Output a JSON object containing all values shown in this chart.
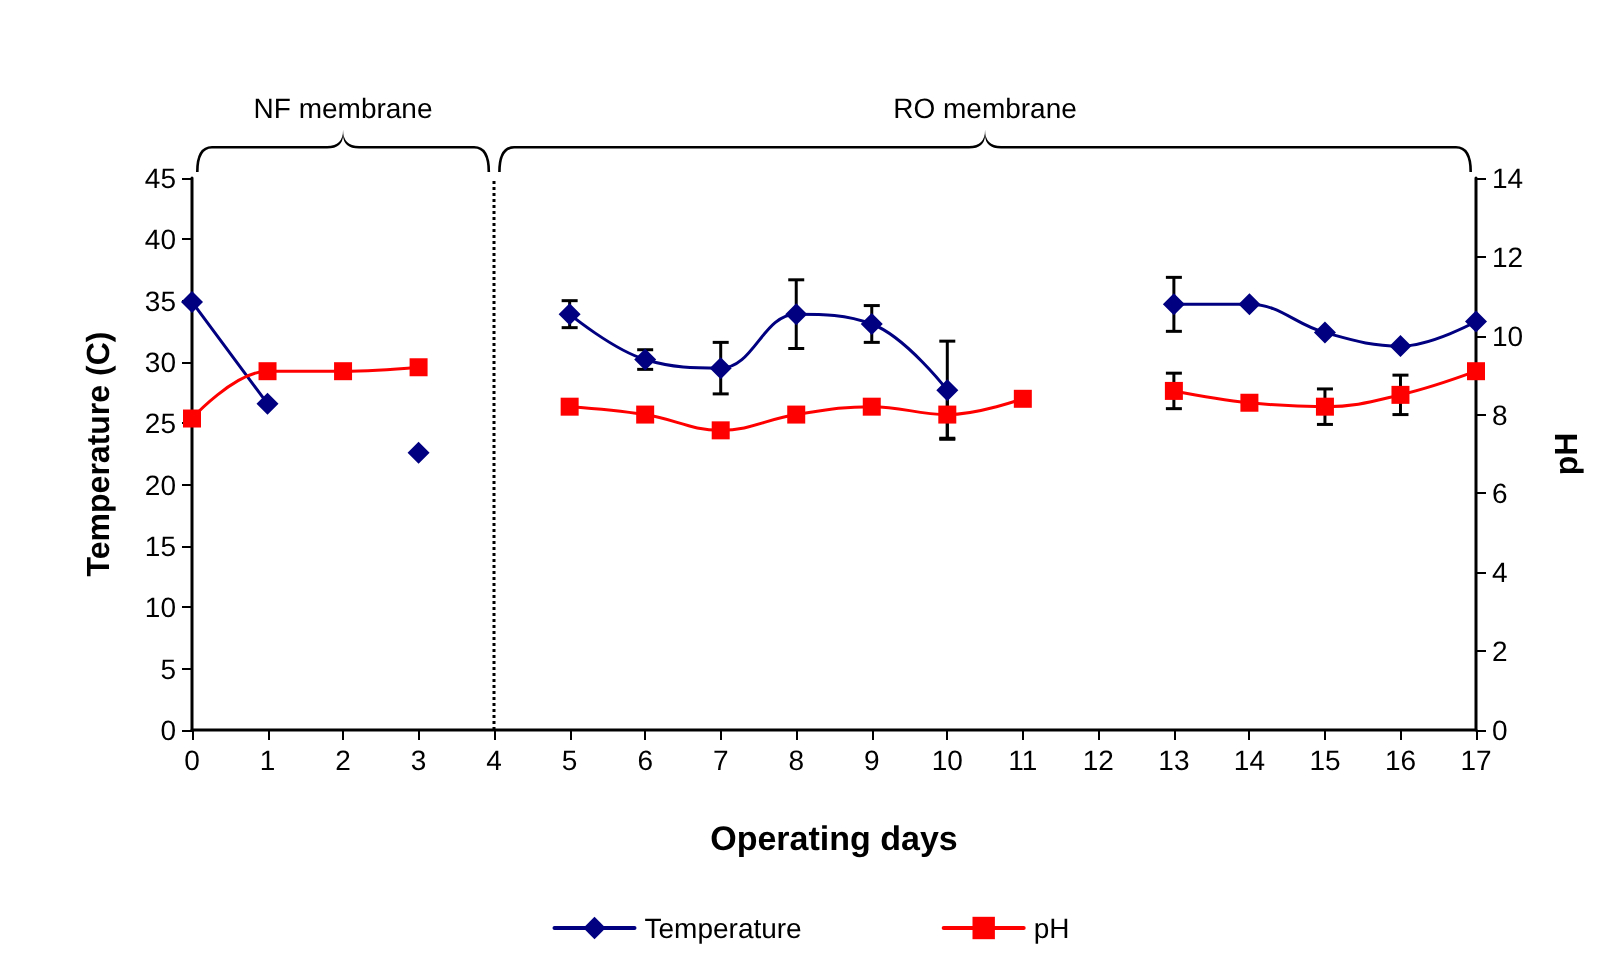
{
  "chart_data": {
    "type": "line",
    "xlabel": "Operating days",
    "ylabel": "Temperature (C)",
    "y2label": "pH",
    "x": [
      0,
      1,
      2,
      3,
      4,
      5,
      6,
      7,
      8,
      9,
      10,
      11,
      12,
      13,
      14,
      15,
      16,
      17
    ],
    "series": [
      {
        "name": "Temperature",
        "color": "#000080",
        "marker": "diamond",
        "values": [
          34.9,
          26.6,
          null,
          22.6,
          null,
          33.9,
          30.2,
          29.5,
          33.9,
          33.1,
          27.7,
          null,
          null,
          34.7,
          34.7,
          32.4,
          31.3,
          33.3
        ],
        "errors": [
          null,
          null,
          null,
          null,
          null,
          1.1,
          0.8,
          2.1,
          2.8,
          1.5,
          4,
          null,
          null,
          2.2,
          null,
          null,
          null,
          null
        ]
      },
      {
        "name": "pH",
        "color": "#ff0000",
        "marker": "square",
        "axis": "y2",
        "values": [
          7.9,
          9.1,
          9.1,
          9.2,
          null,
          8.2,
          8.0,
          7.6,
          8.0,
          8.2,
          8.0,
          8.4,
          null,
          8.6,
          8.3,
          8.2,
          8.5,
          9.1
        ],
        "errors": [
          null,
          null,
          null,
          null,
          null,
          null,
          null,
          null,
          null,
          null,
          0.6,
          null,
          null,
          0.45,
          null,
          0.45,
          0.5,
          null
        ]
      }
    ],
    "xlim": [
      0,
      17
    ],
    "xticks": [
      0,
      1,
      2,
      3,
      4,
      5,
      6,
      7,
      8,
      9,
      10,
      11,
      12,
      13,
      14,
      15,
      16,
      17
    ],
    "ylim": [
      0,
      45
    ],
    "yticks": [
      0,
      5,
      10,
      15,
      20,
      25,
      30,
      35,
      40,
      45
    ],
    "y2lim": [
      0,
      14
    ],
    "y2ticks": [
      0,
      2,
      4,
      6,
      8,
      10,
      12,
      14
    ],
    "ref_lines": [
      {
        "axis": "x",
        "value": 4,
        "line_style": "dotted",
        "color": "#000000"
      }
    ],
    "annotations": [
      "NF membrane",
      "RO membrane"
    ],
    "grid": false,
    "legend": "bottom"
  }
}
